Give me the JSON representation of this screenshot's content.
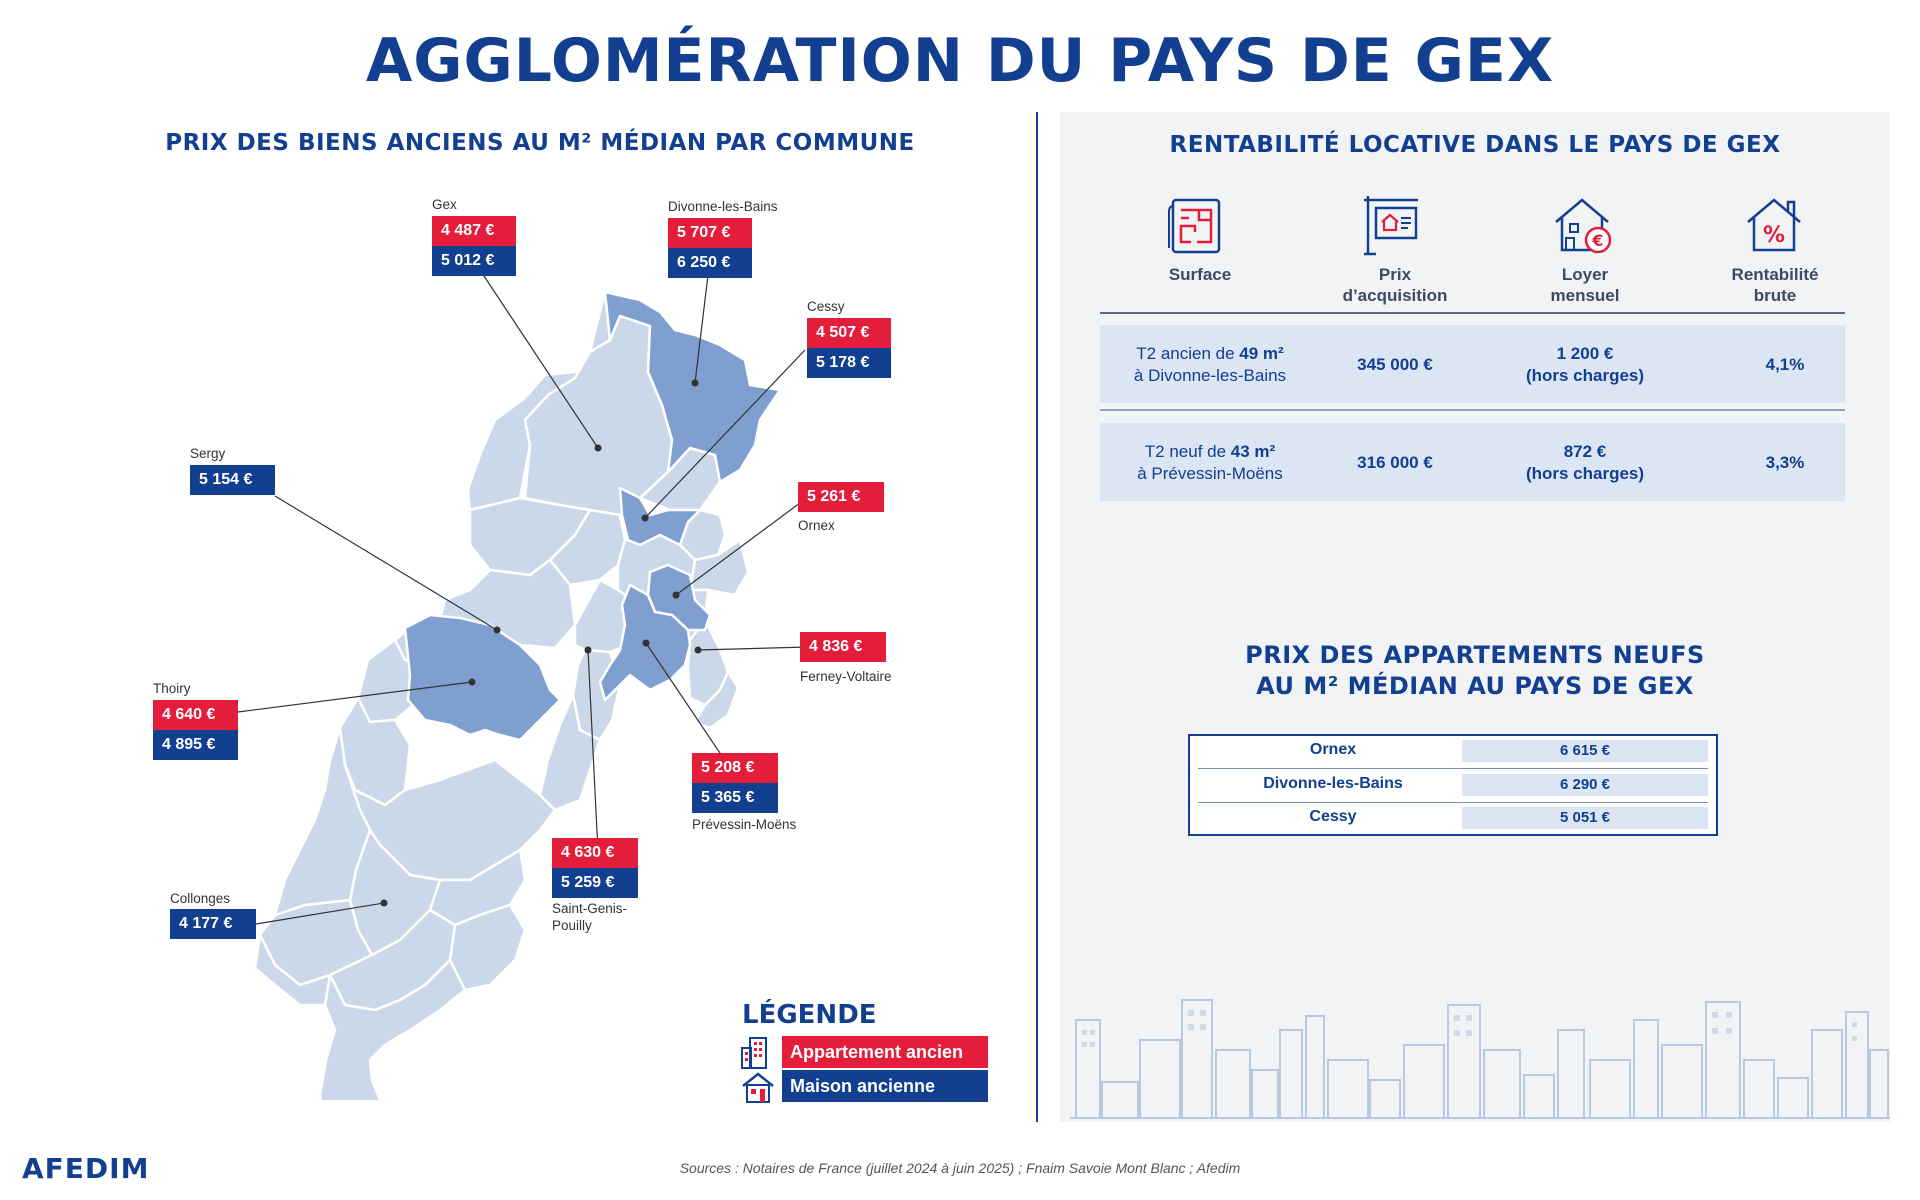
{
  "title": "AGGLOMÉRATION DU PAYS DE GEX",
  "map_section": {
    "title": "PRIX DES BIENS ANCIENS AU M² MÉDIAN PAR COMMUNE",
    "communes": [
      {
        "name": "Gex",
        "apartment": "4 487 €",
        "house": "5 012 €"
      },
      {
        "name": "Divonne-les-Bains",
        "apartment": "5 707 €",
        "house": "6 250 €"
      },
      {
        "name": "Cessy",
        "apartment": "4 507 €",
        "house": "5 178 €"
      },
      {
        "name": "Sergy",
        "house": "5 154 €"
      },
      {
        "name": "Ornex",
        "apartment": "5 261 €"
      },
      {
        "name": "Ferney-Voltaire",
        "apartment": "4 836 €"
      },
      {
        "name": "Thoiry",
        "apartment": "4 640 €",
        "house": "4 895 €"
      },
      {
        "name": "Prévessin-Moëns",
        "apartment": "5 208 €",
        "house": "5 365 €"
      },
      {
        "name_line1": "Saint-Genis-",
        "name_line2": "Pouilly",
        "apartment": "4 630 €",
        "house": "5 259 €"
      },
      {
        "name": "Collonges",
        "house": "4 177 €"
      }
    ],
    "legend": {
      "title": "LÉGENDE",
      "apartment": "Appartement ancien",
      "house": "Maison ancienne"
    },
    "colors": {
      "apartment": "#e41d3b",
      "house": "#123f8f",
      "commune_light": "#cbd8ea",
      "commune_highlight": "#7f9fd0"
    }
  },
  "rental_section": {
    "title": "RENTABILITÉ LOCATIVE DANS LE PAYS DE GEX",
    "headers": [
      {
        "icon": "floor-plan-icon",
        "line1": "Surface",
        "line2": ""
      },
      {
        "icon": "sale-sign-icon",
        "line1": "Prix",
        "line2": "d’acquisition"
      },
      {
        "icon": "house-euro-icon",
        "line1": "Loyer",
        "line2": "mensuel"
      },
      {
        "icon": "house-percent-icon",
        "line1": "Rentabilité",
        "line2": "brute"
      }
    ],
    "rows": [
      {
        "surface_pre": "T2 ancien de ",
        "surface_bold": "49 m²",
        "surface_line2": "à Divonne-les-Bains",
        "price": "345 000 €",
        "rent_line1": "1 200 €",
        "rent_line2": "(hors charges)",
        "yield": "4,1%"
      },
      {
        "surface_pre": "T2 neuf de ",
        "surface_bold": "43 m²",
        "surface_line2": "à Prévessin-Moëns",
        "price": "316 000 €",
        "rent_line1": "872 €",
        "rent_line2": "(hors charges)",
        "yield": "3,3%"
      }
    ]
  },
  "new_apartments": {
    "title_line1": "PRIX DES APPARTEMENTS NEUFS",
    "title_line2": "AU M² MÉDIAN AU PAYS DE GEX",
    "rows": [
      {
        "name": "Ornex",
        "value": "6 615 €"
      },
      {
        "name": "Divonne-les-Bains",
        "value": "6 290 €"
      },
      {
        "name": "Cessy",
        "value": "5 051 €"
      }
    ]
  },
  "sources": "Sources : Notaires de France (juillet 2024 à juin 2025) ; Fnaim Savoie Mont Blanc ; Afedim",
  "logo": "AFEDIM"
}
